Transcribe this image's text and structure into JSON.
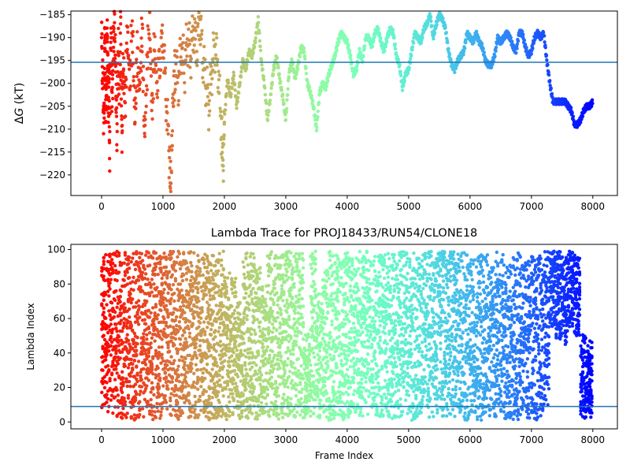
{
  "chart_data": [
    {
      "type": "scatter",
      "title": "",
      "xlabel": "",
      "ylabel": "ΔG (kT)",
      "ylabel_prefix": "Δ",
      "ylabel_var": "G",
      "ylabel_unit": " (kT)",
      "xlim": [
        -500,
        8400
      ],
      "ylim": [
        -224.5,
        -184.2
      ],
      "xticks": [
        0,
        1000,
        2000,
        3000,
        4000,
        5000,
        6000,
        7000,
        8000
      ],
      "yticks": [
        -185,
        -190,
        -195,
        -200,
        -205,
        -210,
        -215,
        -220
      ],
      "hline": -195.4,
      "hline_color": "#1f77b4",
      "colormap": "rainbow (color by frame index: red at 0, violet at 8000)",
      "grid": false,
      "series_points": [
        [
          0,
          -190
        ],
        [
          20,
          -200
        ],
        [
          40,
          -210
        ],
        [
          50,
          -190
        ],
        [
          60,
          -197
        ],
        [
          70,
          -209
        ],
        [
          80,
          -200
        ],
        [
          90,
          -185
        ],
        [
          100,
          -194
        ],
        [
          110,
          -206
        ],
        [
          120,
          -197
        ],
        [
          130,
          -216
        ],
        [
          150,
          -188
        ],
        [
          170,
          -204
        ],
        [
          190,
          -193
        ],
        [
          210,
          -186
        ],
        [
          230,
          -199
        ],
        [
          250,
          -211
        ],
        [
          270,
          -191
        ],
        [
          290,
          -202
        ],
        [
          310,
          -187
        ],
        [
          330,
          -213
        ],
        [
          350,
          -195
        ],
        [
          380,
          -205
        ],
        [
          420,
          -189
        ],
        [
          460,
          -200
        ],
        [
          500,
          -186
        ],
        [
          540,
          -208
        ],
        [
          580,
          -194
        ],
        [
          620,
          -201
        ],
        [
          660,
          -188
        ],
        [
          700,
          -212
        ],
        [
          740,
          -197
        ],
        [
          780,
          -185
        ],
        [
          820,
          -206
        ],
        [
          860,
          -192
        ],
        [
          900,
          -200
        ],
        [
          950,
          -195
        ],
        [
          1000,
          -190
        ],
        [
          1050,
          -203
        ],
        [
          1100,
          -215
        ],
        [
          1130,
          -224
        ],
        [
          1160,
          -205
        ],
        [
          1200,
          -196
        ],
        [
          1250,
          -200
        ],
        [
          1300,
          -192
        ],
        [
          1350,
          -197
        ],
        [
          1400,
          -190
        ],
        [
          1450,
          -194
        ],
        [
          1500,
          -188
        ],
        [
          1550,
          -193
        ],
        [
          1600,
          -186
        ],
        [
          1650,
          -195
        ],
        [
          1700,
          -200
        ],
        [
          1750,
          -205
        ],
        [
          1800,
          -196
        ],
        [
          1850,
          -192
        ],
        [
          1900,
          -197
        ],
        [
          1950,
          -210
        ],
        [
          1980,
          -218
        ],
        [
          2000,
          -208
        ],
        [
          2050,
          -199
        ],
        [
          2100,
          -203
        ],
        [
          2150,
          -198
        ],
        [
          2200,
          -205
        ],
        [
          2250,
          -200
        ],
        [
          2300,
          -195
        ],
        [
          2350,
          -197
        ],
        [
          2400,
          -193
        ],
        [
          2450,
          -194
        ],
        [
          2500,
          -191
        ],
        [
          2550,
          -186
        ],
        [
          2600,
          -195
        ],
        [
          2650,
          -200
        ],
        [
          2700,
          -208
        ],
        [
          2750,
          -203
        ],
        [
          2800,
          -197
        ],
        [
          2850,
          -194
        ],
        [
          2900,
          -199
        ],
        [
          2950,
          -203
        ],
        [
          3000,
          -208
        ],
        [
          3050,
          -198
        ],
        [
          3100,
          -195
        ],
        [
          3150,
          -199
        ],
        [
          3200,
          -196
        ],
        [
          3250,
          -192
        ],
        [
          3300,
          -193
        ],
        [
          3350,
          -200
        ],
        [
          3400,
          -202
        ],
        [
          3450,
          -205
        ],
        [
          3500,
          -210
        ],
        [
          3550,
          -202
        ],
        [
          3600,
          -200
        ],
        [
          3650,
          -201
        ],
        [
          3700,
          -198
        ],
        [
          3750,
          -196
        ],
        [
          3800,
          -194
        ],
        [
          3850,
          -191
        ],
        [
          3900,
          -189
        ],
        [
          3950,
          -190
        ],
        [
          4000,
          -191
        ],
        [
          4050,
          -194
        ],
        [
          4100,
          -198
        ],
        [
          4150,
          -197
        ],
        [
          4200,
          -193
        ],
        [
          4250,
          -195
        ],
        [
          4300,
          -190
        ],
        [
          4350,
          -190
        ],
        [
          4400,
          -192
        ],
        [
          4450,
          -189
        ],
        [
          4500,
          -188
        ],
        [
          4550,
          -191
        ],
        [
          4600,
          -193
        ],
        [
          4650,
          -190
        ],
        [
          4700,
          -188
        ],
        [
          4750,
          -189
        ],
        [
          4800,
          -194
        ],
        [
          4850,
          -196
        ],
        [
          4900,
          -201
        ],
        [
          4950,
          -198
        ],
        [
          5000,
          -197
        ],
        [
          5050,
          -193
        ],
        [
          5100,
          -189
        ],
        [
          5150,
          -190
        ],
        [
          5200,
          -191
        ],
        [
          5250,
          -188
        ],
        [
          5300,
          -187
        ],
        [
          5350,
          -185
        ],
        [
          5400,
          -190
        ],
        [
          5450,
          -187
        ],
        [
          5500,
          -185
        ],
        [
          5550,
          -186
        ],
        [
          5600,
          -188
        ],
        [
          5650,
          -193
        ],
        [
          5700,
          -196
        ],
        [
          5750,
          -197
        ],
        [
          5800,
          -195
        ],
        [
          5850,
          -194
        ],
        [
          5900,
          -193
        ],
        [
          5950,
          -189
        ],
        [
          6000,
          -190
        ],
        [
          6050,
          -191
        ],
        [
          6100,
          -189
        ],
        [
          6150,
          -191
        ],
        [
          6200,
          -192
        ],
        [
          6250,
          -195
        ],
        [
          6300,
          -196
        ],
        [
          6350,
          -196
        ],
        [
          6400,
          -194
        ],
        [
          6450,
          -190
        ],
        [
          6500,
          -191
        ],
        [
          6550,
          -190
        ],
        [
          6600,
          -189
        ],
        [
          6650,
          -190
        ],
        [
          6700,
          -192
        ],
        [
          6750,
          -193
        ],
        [
          6800,
          -189
        ],
        [
          6850,
          -189
        ],
        [
          6900,
          -192
        ],
        [
          6950,
          -194
        ],
        [
          7000,
          -193
        ],
        [
          7050,
          -190
        ],
        [
          7100,
          -189
        ],
        [
          7150,
          -190
        ],
        [
          7200,
          -189
        ],
        [
          7250,
          -195
        ],
        [
          7300,
          -200
        ],
        [
          7350,
          -204
        ],
        [
          7400,
          -204
        ],
        [
          7450,
          -204
        ],
        [
          7500,
          -204
        ],
        [
          7550,
          -204
        ],
        [
          7600,
          -205
        ],
        [
          7650,
          -206
        ],
        [
          7700,
          -209
        ],
        [
          7750,
          -209
        ],
        [
          7800,
          -208
        ],
        [
          7850,
          -206
        ],
        [
          7900,
          -205
        ],
        [
          7950,
          -205
        ],
        [
          8000,
          -204
        ]
      ]
    },
    {
      "type": "scatter",
      "title": "Lambda Trace for PROJ18433/RUN54/CLONE18",
      "xlabel": "Frame Index",
      "ylabel": "Lambda Index",
      "xlim": [
        -500,
        8400
      ],
      "ylim": [
        -4,
        103
      ],
      "xticks": [
        0,
        1000,
        2000,
        3000,
        4000,
        5000,
        6000,
        7000,
        8000
      ],
      "yticks": [
        0,
        20,
        40,
        60,
        80,
        100
      ],
      "hline": 9,
      "hline_color": "#1f77b4",
      "colormap": "rainbow (color by frame index: red at 0, violet at 8000)",
      "grid": false,
      "segments": [
        [
          0,
          2,
          97
        ],
        [
          100,
          5,
          99
        ],
        [
          200,
          1,
          99
        ],
        [
          300,
          2,
          99
        ],
        [
          400,
          2,
          98
        ],
        [
          500,
          1,
          99
        ],
        [
          600,
          2,
          99
        ],
        [
          700,
          2,
          99
        ],
        [
          800,
          1,
          99
        ],
        [
          900,
          2,
          98
        ],
        [
          1000,
          1,
          99
        ],
        [
          1100,
          2,
          99
        ],
        [
          1200,
          1,
          99
        ],
        [
          1300,
          2,
          99
        ],
        [
          1400,
          1,
          99
        ],
        [
          1500,
          2,
          99
        ],
        [
          1600,
          1,
          98
        ],
        [
          1700,
          1,
          99
        ],
        [
          1800,
          2,
          99
        ],
        [
          1900,
          2,
          99
        ],
        [
          2000,
          1,
          88
        ],
        [
          2100,
          3,
          84
        ],
        [
          2200,
          2,
          70
        ],
        [
          2300,
          2,
          99
        ],
        [
          2400,
          2,
          98
        ],
        [
          2500,
          1,
          92
        ],
        [
          2600,
          3,
          82
        ],
        [
          2700,
          2,
          99
        ],
        [
          2800,
          1,
          97
        ],
        [
          2900,
          2,
          99
        ],
        [
          3000,
          3,
          99
        ],
        [
          3100,
          1,
          99
        ],
        [
          3200,
          2,
          99
        ],
        [
          3300,
          2,
          52
        ],
        [
          3400,
          3,
          99
        ],
        [
          3500,
          2,
          75
        ],
        [
          3600,
          2,
          90
        ],
        [
          3700,
          1,
          99
        ],
        [
          3800,
          3,
          98
        ],
        [
          3900,
          1,
          99
        ],
        [
          4000,
          2,
          99
        ],
        [
          4100,
          1,
          97
        ],
        [
          4200,
          3,
          99
        ],
        [
          4300,
          2,
          99
        ],
        [
          4400,
          2,
          97
        ],
        [
          4500,
          1,
          97
        ],
        [
          4600,
          2,
          98
        ],
        [
          4700,
          1,
          99
        ],
        [
          4800,
          2,
          99
        ],
        [
          4900,
          2,
          99
        ],
        [
          5000,
          1,
          98
        ],
        [
          5100,
          2,
          96
        ],
        [
          5200,
          2,
          98
        ],
        [
          5300,
          1,
          99
        ],
        [
          5400,
          2,
          99
        ],
        [
          5500,
          1,
          99
        ],
        [
          5600,
          3,
          99
        ],
        [
          5700,
          2,
          99
        ],
        [
          5800,
          4,
          98
        ],
        [
          5900,
          1,
          99
        ],
        [
          6000,
          2,
          97
        ],
        [
          6100,
          1,
          98
        ],
        [
          6200,
          2,
          97
        ],
        [
          6300,
          3,
          90
        ],
        [
          6400,
          2,
          99
        ],
        [
          6500,
          1,
          97
        ],
        [
          6600,
          2,
          93
        ],
        [
          6700,
          1,
          99
        ],
        [
          6800,
          3,
          97
        ],
        [
          6900,
          2,
          95
        ],
        [
          7000,
          1,
          99
        ],
        [
          7100,
          2,
          97
        ],
        [
          7200,
          4,
          99
        ],
        [
          7300,
          55,
          99
        ],
        [
          7400,
          48,
          99
        ],
        [
          7500,
          45,
          96
        ],
        [
          7600,
          55,
          99
        ],
        [
          7700,
          50,
          97
        ],
        [
          7800,
          2,
          51
        ],
        [
          7900,
          1,
          47
        ],
        [
          8000,
          1,
          51
        ]
      ]
    }
  ]
}
